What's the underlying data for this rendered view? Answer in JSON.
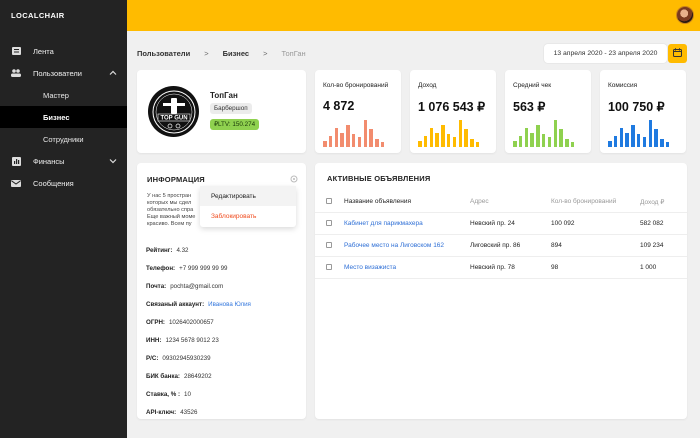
{
  "app": {
    "logo": "LOCALCHAIR"
  },
  "sidebar": {
    "items": [
      {
        "label": "Лента",
        "icon": "list-icon"
      },
      {
        "label": "Пользователи",
        "icon": "users-icon",
        "expanded": true
      },
      {
        "label": "Финансы",
        "icon": "finance-icon",
        "collapsed": true
      },
      {
        "label": "Сообщения",
        "icon": "mail-icon"
      }
    ],
    "subitems": [
      {
        "label": "Мастер"
      },
      {
        "label": "Бизнес",
        "active": true
      },
      {
        "label": "Сотрудники"
      }
    ]
  },
  "breadcrumb": {
    "item1": "Пользователи",
    "sep": ">",
    "item2": "Бизнес",
    "current": "ТопГан"
  },
  "date_range": "13 апреля 2020 - 23 апреля 2020",
  "profile": {
    "name": "ТопГан",
    "category": "Барбершоп",
    "ltv": "₽LTV: 150.274",
    "logo_text": "TOP GUN"
  },
  "stats": [
    {
      "label": "Кол-во бронирований",
      "value": "4 872",
      "color": "#f28c6e",
      "bars": [
        0.2,
        0.35,
        0.6,
        0.45,
        0.7,
        0.4,
        0.3,
        0.85,
        0.55,
        0.25,
        0.15
      ]
    },
    {
      "label": "Доход",
      "value": "1 076 543 ₽",
      "color": "#ffbb00",
      "bars": [
        0.2,
        0.35,
        0.6,
        0.45,
        0.7,
        0.4,
        0.3,
        0.85,
        0.55,
        0.25,
        0.15
      ]
    },
    {
      "label": "Средний чек",
      "value": "563 ₽",
      "color": "#8fd14f",
      "bars": [
        0.2,
        0.35,
        0.6,
        0.45,
        0.7,
        0.4,
        0.3,
        0.85,
        0.55,
        0.25,
        0.15
      ]
    },
    {
      "label": "Комиссия",
      "value": "100 750 ₽",
      "color": "#1f7ae0",
      "bars": [
        0.2,
        0.35,
        0.6,
        0.45,
        0.7,
        0.4,
        0.3,
        0.85,
        0.55,
        0.25,
        0.15
      ]
    }
  ],
  "info": {
    "title": "ИНФОРМАЦИЯ",
    "text": "У нас 5 простран\nкоторых мы сдел\nобязательно спра\nЕще важный моме\nкрасиво. Всем пу",
    "menu": {
      "edit": "Редактировать",
      "block": "Заблокировать"
    },
    "fields": [
      {
        "key": "Рейтинг:",
        "value": "4.32"
      },
      {
        "key": "Телефон:",
        "value": "+7 999 999 99 99"
      },
      {
        "key": "Почта:",
        "value": "pochta@gmail.com"
      },
      {
        "key": "Связаный аккаунт:",
        "value": "Иванова Юлия",
        "link": true
      },
      {
        "key": "ОГРН:",
        "value": "1026402000657"
      },
      {
        "key": "ИНН:",
        "value": "1234 5678 9012 23"
      },
      {
        "key": "Р/С:",
        "value": "09302945930239"
      },
      {
        "key": "БИК банка:",
        "value": "28649202"
      },
      {
        "key": "Ставка, % :",
        "value": "10"
      },
      {
        "key": "API-ключ:",
        "value": "43526"
      }
    ]
  },
  "ads": {
    "title": "АКТИВНЫЕ ОБЪЯВЛЕНИЯ",
    "columns": [
      "Название объявления",
      "Адрес",
      "Кол-во бронирований",
      "Доход ₽"
    ],
    "rows": [
      [
        "Кабинет для парикмахера",
        "Невский пр. 24",
        "100 092",
        "582 082"
      ],
      [
        "Рабочее место на Лиговском 162",
        "Лиговский пр. 86",
        "894",
        "109 234"
      ],
      [
        "Место визажиста",
        "Невский пр. 78",
        "98",
        "1 000"
      ]
    ]
  }
}
